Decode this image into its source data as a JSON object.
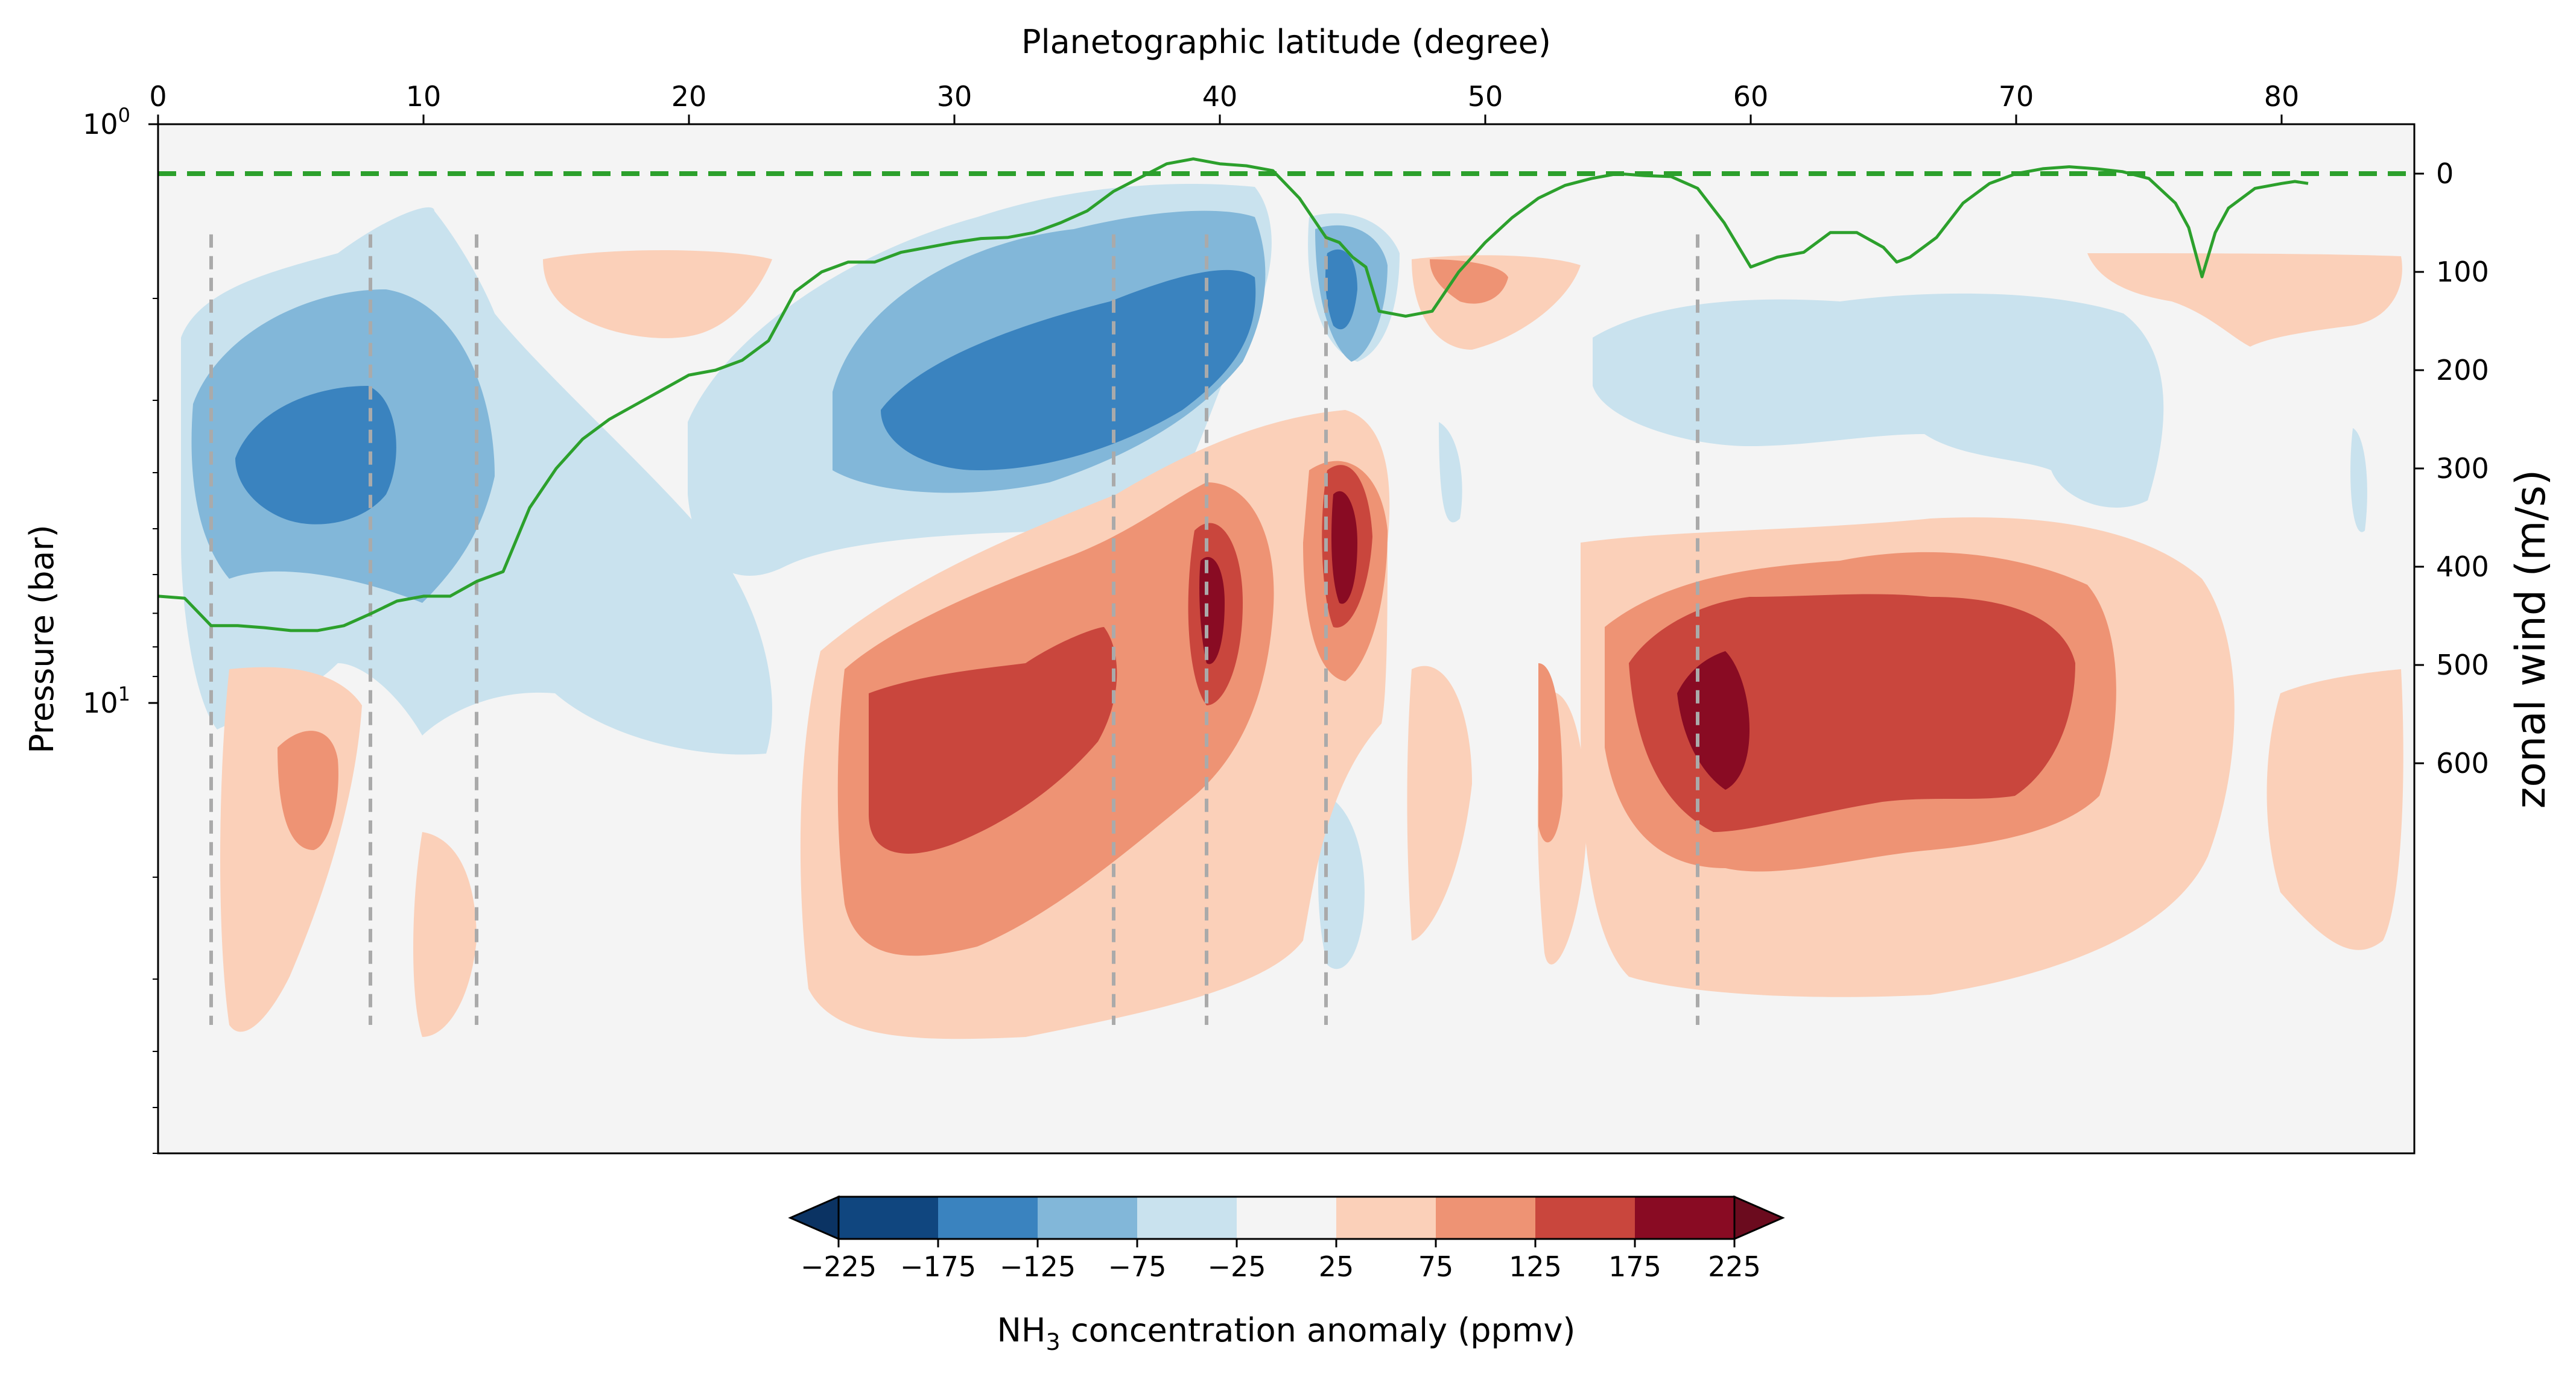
{
  "chart_data": {
    "type": "heatmap",
    "title": "",
    "x_axis": {
      "label": "Planetographic latitude (degree)",
      "position": "top",
      "range": [
        0,
        85
      ],
      "ticks": [
        0,
        10,
        20,
        30,
        40,
        50,
        60,
        70,
        80
      ]
    },
    "y_axis_left": {
      "label": "Pressure (bar)",
      "scale": "log",
      "inverted": true,
      "range": [
        1,
        60
      ],
      "major_ticks": [
        {
          "value": 1,
          "label": "10",
          "exp": "0"
        },
        {
          "value": 10,
          "label": "10",
          "exp": "1"
        }
      ]
    },
    "y_axis_right": {
      "label": "zonal wind (m/s)",
      "ticks": [
        0,
        100,
        200,
        300,
        400,
        500,
        600
      ],
      "range": [
        -50,
        1000
      ]
    },
    "colorbar": {
      "label_prefix": "NH",
      "label_sub": "3",
      "label_suffix": " concentration anomaly (ppmv)",
      "levels": [
        -225,
        -175,
        -125,
        -75,
        -25,
        25,
        75,
        125,
        175,
        225
      ],
      "colors": [
        "#10467f",
        "#3a83bf",
        "#82b7d9",
        "#c9e2ee",
        "#f4f4f4",
        "#fbd0b9",
        "#ee9374",
        "#c9463d",
        "#890b23"
      ],
      "extend_low_color": "#0b3363",
      "extend_high_color": "#6b0b1e",
      "background": "#f4f4f4"
    },
    "anomaly_features": [
      {
        "lat": 5.5,
        "p": 3.0,
        "value": -200,
        "type": "low"
      },
      {
        "lat": 37,
        "p": 2.5,
        "value": -200,
        "type": "low"
      },
      {
        "lat": 44.5,
        "p": 2.0,
        "value": -200,
        "type": "low"
      },
      {
        "lat": 60,
        "p": 2.7,
        "value": -90,
        "type": "low"
      },
      {
        "lat": 39.5,
        "p": 6.0,
        "value": 200,
        "type": "high"
      },
      {
        "lat": 44.5,
        "p": 5.0,
        "value": 200,
        "type": "high"
      },
      {
        "lat": 35,
        "p": 11,
        "value": 160,
        "type": "high"
      },
      {
        "lat": 58,
        "p": 10,
        "value": 200,
        "type": "high"
      },
      {
        "lat": 65,
        "p": 9,
        "value": 160,
        "type": "high"
      },
      {
        "lat": 6,
        "p": 13,
        "value": 110,
        "type": "high"
      },
      {
        "lat": 48,
        "p": 1.5,
        "value": 100,
        "type": "high"
      }
    ],
    "zonal_wind": {
      "name": "zonal wind",
      "color": "#2ca02c",
      "zero_line": 0,
      "lat": [
        0,
        1,
        2,
        3,
        4,
        5,
        6,
        7,
        8,
        9,
        10,
        11,
        12,
        13,
        14,
        15,
        16,
        17,
        18,
        19,
        20,
        21,
        22,
        23,
        24,
        25,
        26,
        27,
        28,
        29,
        30,
        31,
        32,
        33,
        34,
        35,
        36,
        37,
        38,
        39,
        40,
        41,
        42,
        43,
        44,
        44.5,
        45,
        45.5,
        46,
        47,
        48,
        49,
        50,
        51,
        52,
        53,
        54,
        55,
        56,
        57,
        58,
        59,
        60,
        61,
        62,
        63,
        64,
        65,
        65.5,
        66,
        67,
        68,
        69,
        70,
        71,
        72,
        73,
        74,
        75,
        76,
        76.5,
        77,
        77.5,
        78,
        79,
        80,
        80.5,
        81
      ],
      "wind": [
        430,
        432,
        460,
        460,
        462,
        465,
        465,
        460,
        448,
        435,
        430,
        430,
        415,
        405,
        340,
        300,
        270,
        250,
        235,
        220,
        205,
        200,
        190,
        170,
        120,
        100,
        90,
        90,
        80,
        75,
        70,
        66,
        65,
        60,
        50,
        38,
        18,
        4,
        -10,
        -15,
        -10,
        -8,
        -3,
        25,
        65,
        70,
        85,
        95,
        140,
        145,
        140,
        100,
        70,
        45,
        25,
        12,
        5,
        0,
        2,
        3,
        15,
        50,
        95,
        85,
        80,
        60,
        60,
        75,
        90,
        85,
        65,
        30,
        10,
        0,
        -5,
        -7,
        -5,
        -2,
        5,
        30,
        55,
        105,
        60,
        35,
        15,
        10,
        8,
        10
      ]
    },
    "dashed_vertical_lines": {
      "color": "#aaaaaa",
      "lat": [
        2,
        8,
        12,
        36,
        39.5,
        44,
        58
      ],
      "p_top": 1.55,
      "p_bottom": 36
    }
  }
}
